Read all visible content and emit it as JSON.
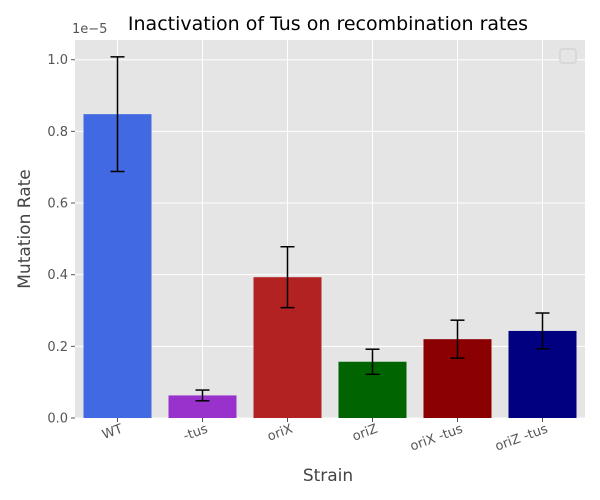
{
  "chart_data": {
    "type": "bar",
    "title": "Inactivation of Tus on recombination rates",
    "xlabel": "Strain",
    "ylabel": "Mutation Rate",
    "y_offset_label": "1e−5",
    "categories": [
      "WT",
      "-tus",
      "oriX",
      "oriZ",
      "oriX -tus",
      "oriZ -tus"
    ],
    "values": [
      0.848,
      0.063,
      0.393,
      0.157,
      0.22,
      0.243
    ],
    "errors": [
      0.16,
      0.015,
      0.085,
      0.035,
      0.053,
      0.05
    ],
    "colors": [
      "#4169E1",
      "#9932CC",
      "#B22222",
      "#006400",
      "#8B0000",
      "#000080"
    ],
    "ylim": [
      0,
      1.055
    ],
    "yticks": [
      0.0,
      0.2,
      0.4,
      0.6,
      0.8,
      1.0
    ],
    "ytick_labels": [
      "0.0",
      "0.2",
      "0.4",
      "0.6",
      "0.8",
      "1.0"
    ],
    "grid": true,
    "legend": "top-right",
    "background": "#E5E5E5",
    "grid_color": "#FFFFFF"
  }
}
